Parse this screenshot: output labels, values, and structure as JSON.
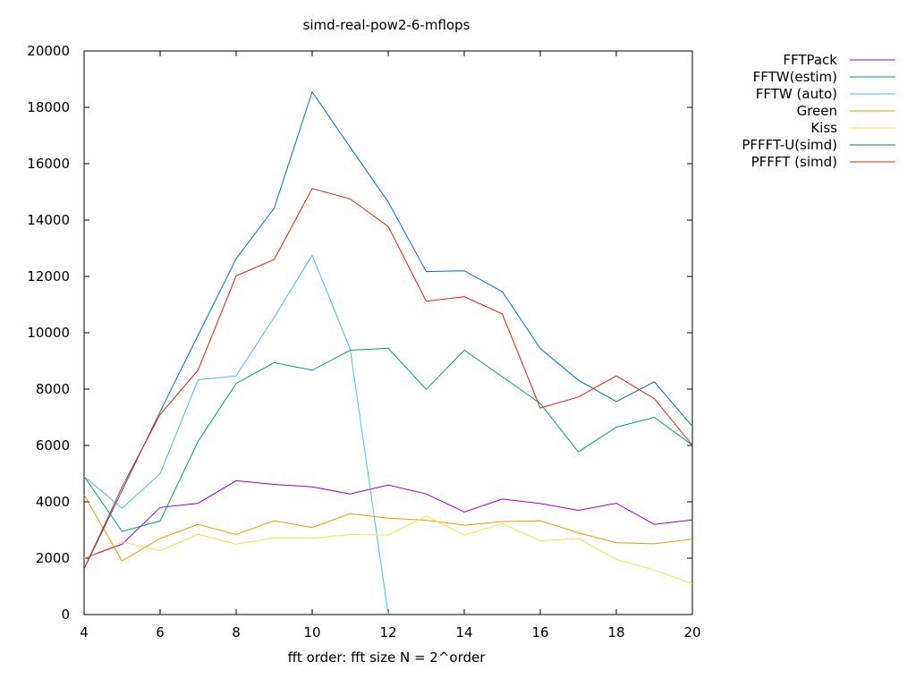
{
  "chart_data": {
    "type": "line",
    "title": "simd-real-pow2-6-mflops",
    "xlabel": "fft order: fft size N = 2^order",
    "ylabel": "",
    "xlim": [
      4,
      20
    ],
    "ylim": [
      0,
      20000
    ],
    "xticks": [
      4,
      6,
      8,
      10,
      12,
      14,
      16,
      18,
      20
    ],
    "yticks": [
      0,
      2000,
      4000,
      6000,
      8000,
      10000,
      12000,
      14000,
      16000,
      18000,
      20000
    ],
    "legend_position": "top-right-outside",
    "x": [
      4,
      5,
      6,
      7,
      8,
      9,
      10,
      11,
      12,
      13,
      14,
      15,
      16,
      17,
      18,
      19,
      20
    ],
    "series": [
      {
        "name": "FFTPack",
        "color": "#9400d3",
        "x": [
          4,
          5,
          6,
          7,
          8,
          9,
          10,
          11,
          12,
          13,
          14,
          15,
          16,
          17,
          18,
          19,
          20
        ],
        "values": [
          2000,
          2500,
          3800,
          3950,
          4750,
          4620,
          4530,
          4280,
          4600,
          4280,
          3640,
          4100,
          3940,
          3700,
          3950,
          3200,
          3360
        ]
      },
      {
        "name": "FFTW(estim)",
        "color": "#009e73",
        "x": [
          4,
          5,
          6,
          7,
          8,
          9,
          10,
          11,
          12,
          13,
          14,
          15,
          16,
          17,
          18,
          19,
          20
        ],
        "values": [
          4900,
          2950,
          3320,
          6150,
          8200,
          8940,
          8670,
          9380,
          9450,
          7990,
          9380,
          8440,
          7490,
          5770,
          6650,
          7000,
          6010
        ]
      },
      {
        "name": "FFTW (auto)",
        "color": "#56b4e9",
        "x": [
          4,
          5,
          6,
          7,
          8,
          9,
          10,
          11,
          12
        ],
        "values": [
          4900,
          3770,
          5000,
          8330,
          8470,
          10550,
          12750,
          9420,
          0
        ]
      },
      {
        "name": "Green",
        "color": "#e69f00",
        "x": [
          4,
          5,
          6,
          7,
          8,
          9,
          10,
          11,
          12,
          13,
          14,
          15,
          16,
          17,
          18,
          19,
          20
        ],
        "values": [
          4250,
          1900,
          2700,
          3200,
          2840,
          3330,
          3090,
          3580,
          3420,
          3350,
          3170,
          3300,
          3330,
          2900,
          2550,
          2510,
          2680
        ]
      },
      {
        "name": "Kiss",
        "color": "#f0e442",
        "x": [
          4,
          5,
          6,
          7,
          8,
          9,
          10,
          11,
          12,
          13,
          14,
          15,
          16,
          17,
          18,
          19,
          20
        ],
        "values": [
          2000,
          2580,
          2260,
          2850,
          2500,
          2720,
          2710,
          2840,
          2820,
          3500,
          2820,
          3230,
          2620,
          2700,
          1960,
          1580,
          1100
        ]
      },
      {
        "name": "PFFFT-U(simd)",
        "color": "#0072b2",
        "x": [
          4,
          5,
          6,
          7,
          8,
          9,
          10,
          11,
          12,
          13,
          14,
          15,
          16,
          17,
          18,
          19,
          20
        ],
        "values": [
          1620,
          4400,
          7200,
          9920,
          12630,
          14420,
          18550,
          16580,
          14640,
          12170,
          12200,
          11460,
          9440,
          8320,
          7560,
          8260,
          6680
        ]
      },
      {
        "name": "PFFFT (simd)",
        "color": "#e51e10",
        "x": [
          4,
          5,
          6,
          7,
          8,
          9,
          10,
          11,
          12,
          13,
          14,
          15,
          16,
          17,
          18,
          19,
          20
        ],
        "values": [
          1620,
          4530,
          7100,
          8680,
          12020,
          12600,
          15120,
          14750,
          13770,
          11120,
          11280,
          10670,
          7330,
          7720,
          8470,
          7660,
          6010
        ]
      }
    ]
  }
}
